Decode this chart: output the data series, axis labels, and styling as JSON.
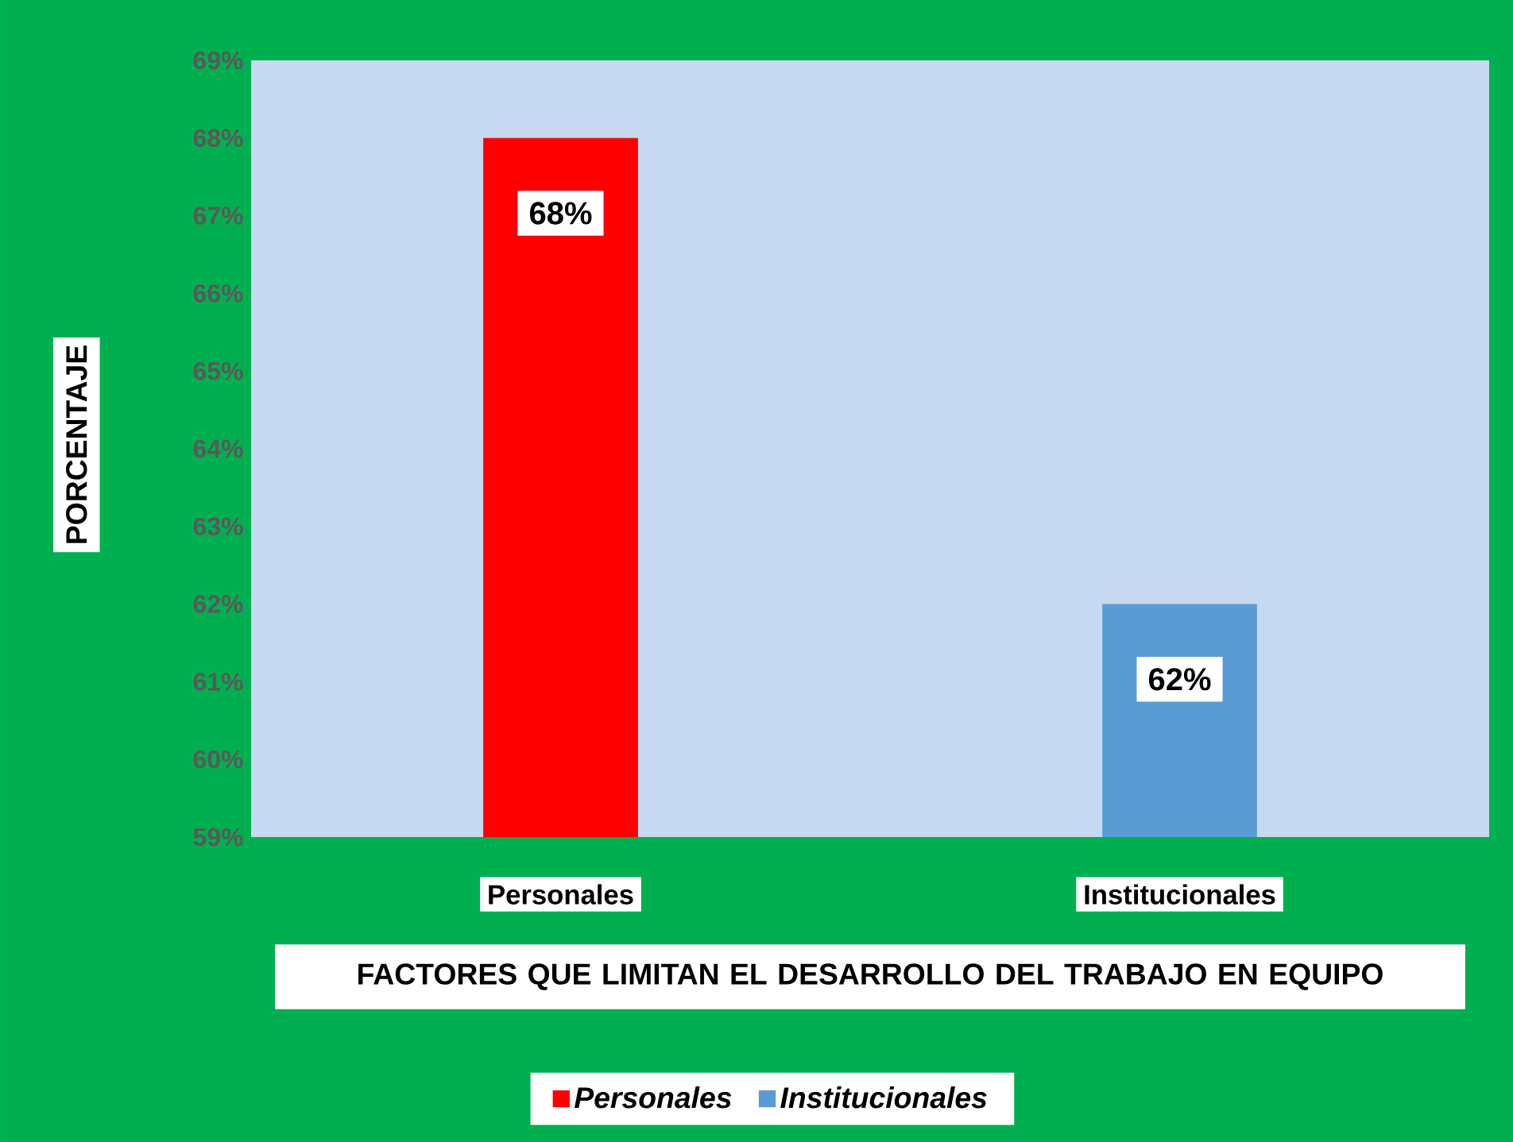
{
  "chart_data": {
    "type": "bar",
    "categories": [
      "Personales",
      "Institucionales"
    ],
    "series": [
      {
        "name": "Personales",
        "color": "#ff0000",
        "values": [
          68,
          null
        ],
        "value_labels": [
          "68%",
          null
        ]
      },
      {
        "name": "Institucionales",
        "color": "#5b9bd5",
        "values": [
          null,
          62
        ],
        "value_labels": [
          null,
          "62%"
        ]
      }
    ],
    "ylim": [
      59,
      69
    ],
    "yticks": [
      {
        "value": 59,
        "label": "59%"
      },
      {
        "value": 60,
        "label": "60%"
      },
      {
        "value": 61,
        "label": "61%"
      },
      {
        "value": 62,
        "label": "62%"
      },
      {
        "value": 63,
        "label": "63%"
      },
      {
        "value": 64,
        "label": "64%"
      },
      {
        "value": 65,
        "label": "65%"
      },
      {
        "value": 66,
        "label": "66%"
      },
      {
        "value": 67,
        "label": "67%"
      },
      {
        "value": 68,
        "label": "68%"
      },
      {
        "value": 69,
        "label": "69%"
      }
    ],
    "xlabel": "FACTORES QUE LIMITAN EL DESARROLLO DEL TRABAJO EN EQUIPO",
    "ylabel": "PORCENTAJE",
    "legend": "bottom"
  }
}
